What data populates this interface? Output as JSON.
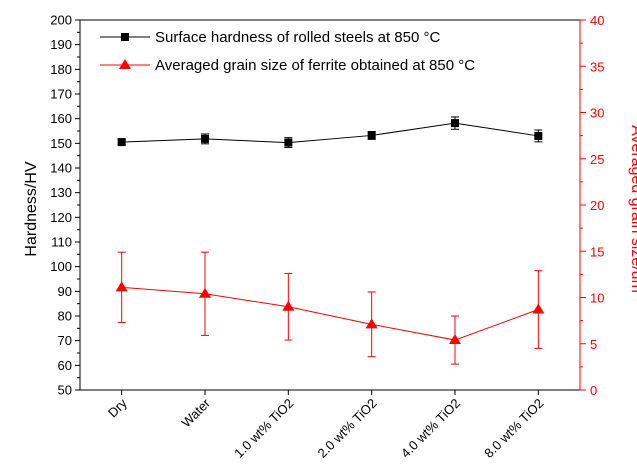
{
  "chart_data": {
    "type": "line",
    "categories": [
      "Dry",
      "Water",
      "1.0 wt% TiO2",
      "2.0 wt% TiO2",
      "4.0 wt% TiO2",
      "8.0 wt% TiO2"
    ],
    "series": [
      {
        "name": "Surface hardness of rolled steels at 850 °C",
        "axis": "left",
        "marker": "square",
        "color": "#000000",
        "values": [
          150.5,
          151.8,
          150.3,
          153.2,
          158.2,
          153.0
        ],
        "error": [
          1.0,
          2.0,
          2.0,
          1.6,
          2.5,
          2.4
        ]
      },
      {
        "name": "Averaged grain size of ferrite obtained at 850 °C",
        "axis": "right",
        "marker": "triangle",
        "color": "#ff0000",
        "values": [
          11.1,
          10.4,
          9.0,
          7.1,
          5.4,
          8.7
        ],
        "error": [
          3.8,
          4.5,
          3.6,
          3.5,
          2.6,
          4.2
        ]
      }
    ],
    "ylabel": "Hardness/HV",
    "y2label": "Averaged grain size/um",
    "ylim": [
      50,
      200
    ],
    "y2lim": [
      0,
      40
    ],
    "yticks": [
      "50",
      "60",
      "70",
      "80",
      "90",
      "100",
      "110",
      "120",
      "130",
      "140",
      "150",
      "160",
      "170",
      "180",
      "190",
      "200"
    ],
    "y2ticks": [
      "0",
      "5",
      "10",
      "15",
      "20",
      "25",
      "30",
      "35",
      "40"
    ],
    "legend_position": "top-right",
    "grid": false
  }
}
